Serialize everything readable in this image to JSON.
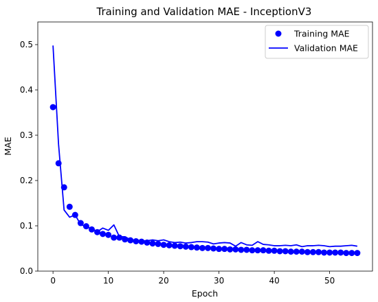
{
  "chart_data": {
    "type": "scatter",
    "title": "Training and Validation MAE - InceptionV3",
    "xlabel": "Epoch",
    "ylabel": "MAE",
    "xlim": [
      -2.75,
      57.75
    ],
    "ylim": [
      0.0,
      0.55
    ],
    "xticks": [
      0,
      10,
      20,
      30,
      40,
      50
    ],
    "yticks": [
      0.0,
      0.1,
      0.2,
      0.3,
      0.4,
      0.5
    ],
    "xtick_labels": [
      "0",
      "10",
      "20",
      "30",
      "40",
      "50"
    ],
    "ytick_labels": [
      "0.0",
      "0.1",
      "0.2",
      "0.3",
      "0.4",
      "0.5"
    ],
    "grid": false,
    "legend_position": "top-right",
    "colors": {
      "series": "#0000ff",
      "axes": "#000000",
      "background": "#ffffff"
    },
    "series": [
      {
        "name": "Training MAE",
        "style": "markers",
        "x": [
          0,
          1,
          2,
          3,
          4,
          5,
          6,
          7,
          8,
          9,
          10,
          11,
          12,
          13,
          14,
          15,
          16,
          17,
          18,
          19,
          20,
          21,
          22,
          23,
          24,
          25,
          26,
          27,
          28,
          29,
          30,
          31,
          32,
          33,
          34,
          35,
          36,
          37,
          38,
          39,
          40,
          41,
          42,
          43,
          44,
          45,
          46,
          47,
          48,
          49,
          50,
          51,
          52,
          53,
          54,
          55
        ],
        "values": [
          0.362,
          0.238,
          0.185,
          0.142,
          0.124,
          0.106,
          0.099,
          0.092,
          0.086,
          0.082,
          0.08,
          0.074,
          0.074,
          0.07,
          0.068,
          0.066,
          0.065,
          0.063,
          0.061,
          0.06,
          0.058,
          0.057,
          0.056,
          0.055,
          0.054,
          0.053,
          0.052,
          0.051,
          0.051,
          0.05,
          0.049,
          0.049,
          0.048,
          0.048,
          0.047,
          0.047,
          0.046,
          0.046,
          0.046,
          0.045,
          0.045,
          0.044,
          0.044,
          0.043,
          0.043,
          0.043,
          0.042,
          0.042,
          0.042,
          0.041,
          0.041,
          0.041,
          0.041,
          0.04,
          0.04,
          0.04
        ]
      },
      {
        "name": "Validation MAE",
        "style": "line",
        "x": [
          0,
          1,
          2,
          3,
          4,
          5,
          6,
          7,
          8,
          9,
          10,
          11,
          12,
          13,
          14,
          15,
          16,
          17,
          18,
          19,
          20,
          21,
          22,
          23,
          24,
          25,
          26,
          27,
          28,
          29,
          30,
          31,
          32,
          33,
          34,
          35,
          36,
          37,
          38,
          39,
          40,
          41,
          42,
          43,
          44,
          45,
          46,
          47,
          48,
          49,
          50,
          51,
          52,
          53,
          54,
          55
        ],
        "values": [
          0.498,
          0.28,
          0.135,
          0.119,
          0.124,
          0.103,
          0.098,
          0.094,
          0.087,
          0.095,
          0.09,
          0.102,
          0.076,
          0.076,
          0.069,
          0.067,
          0.067,
          0.067,
          0.069,
          0.067,
          0.069,
          0.065,
          0.063,
          0.064,
          0.062,
          0.063,
          0.065,
          0.065,
          0.064,
          0.06,
          0.062,
          0.063,
          0.062,
          0.055,
          0.063,
          0.058,
          0.057,
          0.065,
          0.059,
          0.058,
          0.056,
          0.056,
          0.057,
          0.056,
          0.058,
          0.054,
          0.056,
          0.056,
          0.057,
          0.056,
          0.054,
          0.055,
          0.055,
          0.056,
          0.057,
          0.055
        ]
      }
    ]
  }
}
